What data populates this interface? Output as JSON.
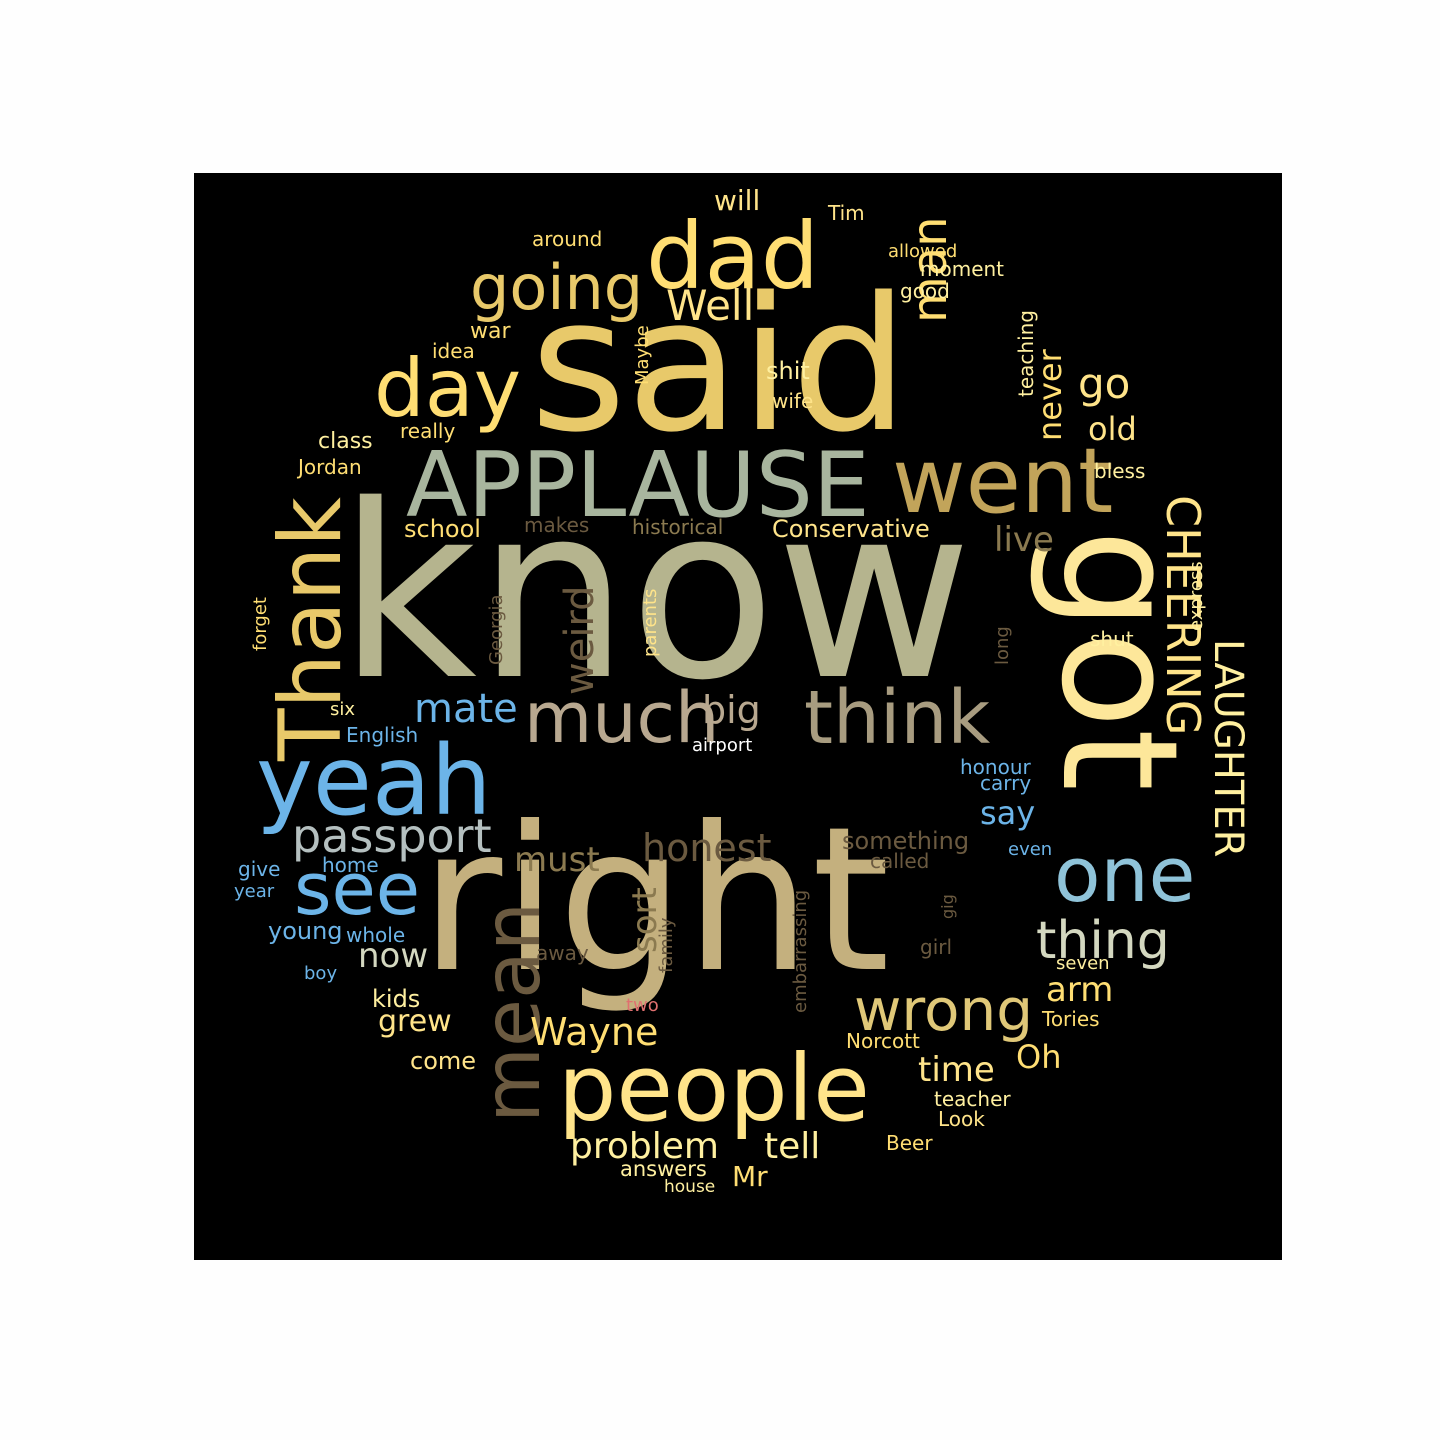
{
  "colors": {
    "background": "#000000",
    "page": "#fefefe",
    "palette": [
      "#ffde73",
      "#e8c96a",
      "#b5b48e",
      "#c4b07e",
      "#a8b59e",
      "#6cb4e8",
      "#8fc3d9",
      "#6b5a40",
      "#8b7a50",
      "#b8a890",
      "#fff0a0",
      "#ffffff",
      "#e07070"
    ]
  },
  "words": [
    {
      "text": "know",
      "color": "#b5b48e"
    },
    {
      "text": "right",
      "color": "#c4b07e"
    },
    {
      "text": "said",
      "color": "#e8c96a"
    },
    {
      "text": "got",
      "color": "#fde79a"
    },
    {
      "text": "APPLAUSE",
      "color": "#a8b59e"
    },
    {
      "text": "dad",
      "color": "#ffde73"
    },
    {
      "text": "went",
      "color": "#c2a45a"
    },
    {
      "text": "people",
      "color": "#ffe48a"
    },
    {
      "text": "yeah",
      "color": "#6cb4e8"
    },
    {
      "text": "Thank",
      "color": "#e8c96a"
    },
    {
      "text": "think",
      "color": "#a89c80"
    },
    {
      "text": "much",
      "color": "#b8a890"
    },
    {
      "text": "day",
      "color": "#ffde73"
    },
    {
      "text": "one",
      "color": "#8fc3d9"
    },
    {
      "text": "see",
      "color": "#6cb4e8"
    },
    {
      "text": "mean",
      "color": "#6b5a40"
    },
    {
      "text": "going",
      "color": "#e8c96a"
    },
    {
      "text": "CHEERING",
      "color": "#ffe48a"
    },
    {
      "text": "LAUGHTER",
      "color": "#fff0a0"
    },
    {
      "text": "passport",
      "color": "#b5c0c0"
    },
    {
      "text": "thing",
      "color": "#d4d8c0"
    },
    {
      "text": "wrong",
      "color": "#e0c878"
    },
    {
      "text": "man",
      "color": "#ffde73"
    },
    {
      "text": "Well",
      "color": "#ffe48a"
    },
    {
      "text": "go",
      "color": "#ffe48a"
    },
    {
      "text": "old",
      "color": "#ffe48a"
    },
    {
      "text": "never",
      "color": "#ffde73"
    },
    {
      "text": "live",
      "color": "#8b7a50"
    },
    {
      "text": "weird",
      "color": "#6b5a40"
    },
    {
      "text": "mate",
      "color": "#6cb4e8"
    },
    {
      "text": "big",
      "color": "#b8a890"
    },
    {
      "text": "honest",
      "color": "#6b5a40"
    },
    {
      "text": "must",
      "color": "#8b7a50"
    },
    {
      "text": "sort",
      "color": "#8b7a50"
    },
    {
      "text": "now",
      "color": "#d4d8c0"
    },
    {
      "text": "Wayne",
      "color": "#ffde73"
    },
    {
      "text": "problem",
      "color": "#fff0a0"
    },
    {
      "text": "tell",
      "color": "#fff0a0"
    },
    {
      "text": "time",
      "color": "#ffe48a"
    },
    {
      "text": "arm",
      "color": "#ffde73"
    },
    {
      "text": "Oh",
      "color": "#ffde73"
    },
    {
      "text": "say",
      "color": "#6cb4e8"
    },
    {
      "text": "grew",
      "color": "#ffe48a"
    },
    {
      "text": "kids",
      "color": "#fff0a0"
    },
    {
      "text": "come",
      "color": "#ffe48a"
    },
    {
      "text": "Mr",
      "color": "#ffde73"
    },
    {
      "text": "answers",
      "color": "#fff0a0"
    },
    {
      "text": "house",
      "color": "#fff0a0"
    },
    {
      "text": "young",
      "color": "#6cb4e8"
    },
    {
      "text": "whole",
      "color": "#6cb4e8"
    },
    {
      "text": "home",
      "color": "#6cb4e8"
    },
    {
      "text": "give",
      "color": "#6cb4e8"
    },
    {
      "text": "year",
      "color": "#6cb4e8"
    },
    {
      "text": "boy",
      "color": "#6cb4e8"
    },
    {
      "text": "English",
      "color": "#6cb4e8"
    },
    {
      "text": "six",
      "color": "#fff0a0"
    },
    {
      "text": "forget",
      "color": "#ffde73"
    },
    {
      "text": "Jordan",
      "color": "#ffde73"
    },
    {
      "text": "class",
      "color": "#fff0a0"
    },
    {
      "text": "school",
      "color": "#ffde73"
    },
    {
      "text": "makes",
      "color": "#6b5a40"
    },
    {
      "text": "historical",
      "color": "#8b7a50"
    },
    {
      "text": "Conservative",
      "color": "#ffe48a"
    },
    {
      "text": "really",
      "color": "#ffde73"
    },
    {
      "text": "idea",
      "color": "#ffde73"
    },
    {
      "text": "war",
      "color": "#ffde73"
    },
    {
      "text": "around",
      "color": "#ffde73"
    },
    {
      "text": "will",
      "color": "#ffe48a"
    },
    {
      "text": "Tim",
      "color": "#ffe48a"
    },
    {
      "text": "allowed",
      "color": "#ffde73"
    },
    {
      "text": "moment",
      "color": "#fff0a0"
    },
    {
      "text": "good",
      "color": "#fff0a0"
    },
    {
      "text": "teaching",
      "color": "#fff0a0"
    },
    {
      "text": "Maybe",
      "color": "#ffde73"
    },
    {
      "text": "shit",
      "color": "#fff0a0"
    },
    {
      "text": "wife",
      "color": "#ffe48a"
    },
    {
      "text": "bless",
      "color": "#fff0a0"
    },
    {
      "text": "express",
      "color": "#fff0a0"
    },
    {
      "text": "shut",
      "color": "#fff0a0"
    },
    {
      "text": "long",
      "color": "#6b5a40"
    },
    {
      "text": "Georgia",
      "color": "#6b5a40"
    },
    {
      "text": "parents",
      "color": "#ffe48a"
    },
    {
      "text": "airport",
      "color": "#ffffff"
    },
    {
      "text": "honour",
      "color": "#6cb4e8"
    },
    {
      "text": "carry",
      "color": "#6cb4e8"
    },
    {
      "text": "even",
      "color": "#6cb4e8"
    },
    {
      "text": "something",
      "color": "#6b5a40"
    },
    {
      "text": "called",
      "color": "#6b5a40"
    },
    {
      "text": "embarrassing",
      "color": "#6b5a40"
    },
    {
      "text": "gig",
      "color": "#6b5a40"
    },
    {
      "text": "girl",
      "color": "#6b5a40"
    },
    {
      "text": "seven",
      "color": "#fff0a0"
    },
    {
      "text": "Tories",
      "color": "#ffde73"
    },
    {
      "text": "Norcott",
      "color": "#ffde73"
    },
    {
      "text": "teacher",
      "color": "#fff0a0"
    },
    {
      "text": "Look",
      "color": "#ffe48a"
    },
    {
      "text": "Beer",
      "color": "#ffde73"
    },
    {
      "text": "away",
      "color": "#6b5a40"
    },
    {
      "text": "family",
      "color": "#6b5a40"
    },
    {
      "text": "two",
      "color": "#e07070"
    }
  ]
}
